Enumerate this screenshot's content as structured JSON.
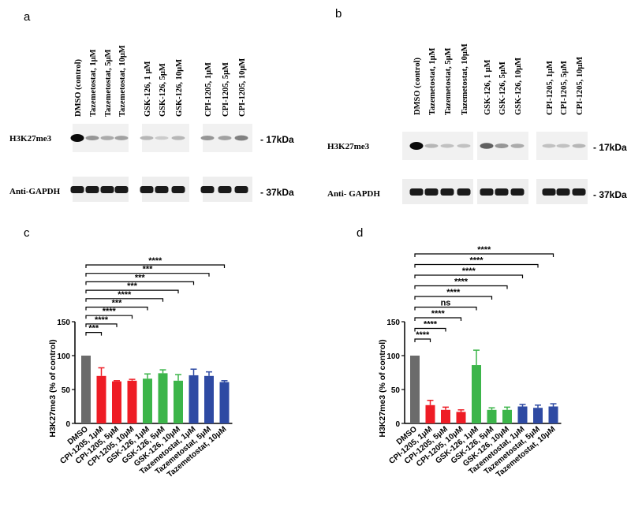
{
  "blots": [
    {
      "label": "a",
      "lanes": [
        "DMSO (control)",
        "Tazemetostat, 1μM",
        "Tazemetostat, 5μM",
        "Tazemetostat, 10μM",
        "GSK-126, 1 μM",
        "GSK-126, 5μM",
        "GSK-126, 10μM",
        "CPI-1205, 1μM",
        "CPI-1205, 5μM",
        "CPI-1205, 10μM"
      ],
      "row1_label": "H3K27me3",
      "row2_label": "Anti-GAPDH",
      "marker1": "- 17kDa",
      "marker2": "- 37kDa",
      "h3_intensity": [
        1.0,
        0.35,
        0.25,
        0.3,
        0.2,
        0.1,
        0.2,
        0.35,
        0.3,
        0.45
      ]
    },
    {
      "label": "b",
      "lanes": [
        "DMSO (control)",
        "Tazemetostat, 1μM",
        "Tazemetostat, 5μM",
        "Tazemetostat, 10μM",
        "GSK-126, 1 μM",
        "GSK-126, 5μM",
        "GSK-126, 10μM",
        "CPI-1205, 1μM",
        "CPI-1205, 5μM",
        "CPI-1205, 10μM"
      ],
      "row1_label": "H3K27me3",
      "row2_label": "Anti- GAPDH",
      "marker1": "- 17kDa",
      "marker2": "- 37kDa",
      "h3_intensity": [
        1.0,
        0.2,
        0.15,
        0.15,
        0.6,
        0.35,
        0.25,
        0.15,
        0.15,
        0.2
      ]
    }
  ],
  "chart_data": [
    {
      "panel_label": "c",
      "type": "bar",
      "ylabel": "H3K27me3 (% of control)",
      "ylim": [
        0,
        150
      ],
      "yticks": [
        0,
        50,
        100,
        150
      ],
      "categories": [
        "DMSO",
        "CPI-1205, 1μM",
        "CPI-1205, 5μM",
        "CPI-1205, 10μM",
        "GSK-126, 1μM",
        "GSK-126, 5μM",
        "GSK-126, 10μM",
        "Tazemetostat, 1μM",
        "Tazemetostat, 5μM",
        "Tazemetostat, 10μM"
      ],
      "values": [
        100,
        70,
        62,
        63,
        66,
        74,
        63,
        71,
        70,
        61
      ],
      "errors": [
        0,
        12,
        1,
        2,
        7,
        5,
        9,
        9,
        6,
        2
      ],
      "colors": [
        "#6b6b6b",
        "#ee1c25",
        "#ee1c25",
        "#ee1c25",
        "#3cb54a",
        "#3cb54a",
        "#3cb54a",
        "#2e4aa3",
        "#2e4aa3",
        "#2e4aa3"
      ],
      "significance": [
        "***",
        "****",
        "****",
        "***",
        "****",
        "***",
        "***",
        "***",
        "****"
      ]
    },
    {
      "panel_label": "d",
      "type": "bar",
      "ylabel": "H3K27me3 (% of control)",
      "ylim": [
        0,
        150
      ],
      "yticks": [
        0,
        50,
        100,
        150
      ],
      "categories": [
        "DMSO",
        "CPI-1205, 1μM",
        "CPI-1205, 5μM",
        "CPI-1205, 10μM",
        "GSK-126, 1μM",
        "GSK-126, 5μM",
        "GSK-126, 10μM",
        "Tazemetostat, 1μM",
        "Tazemetostat, 5μM",
        "Tazemetostat, 10μM"
      ],
      "values": [
        100,
        27,
        20,
        17,
        86,
        20,
        20,
        25,
        23,
        25
      ],
      "errors": [
        0,
        7,
        4,
        3,
        22,
        3,
        4,
        3,
        4,
        4
      ],
      "colors": [
        "#6b6b6b",
        "#ee1c25",
        "#ee1c25",
        "#ee1c25",
        "#3cb54a",
        "#3cb54a",
        "#3cb54a",
        "#2e4aa3",
        "#2e4aa3",
        "#2e4aa3"
      ],
      "significance": [
        "****",
        "****",
        "****",
        "ns",
        "****",
        "****",
        "****",
        "****",
        "****"
      ]
    }
  ]
}
